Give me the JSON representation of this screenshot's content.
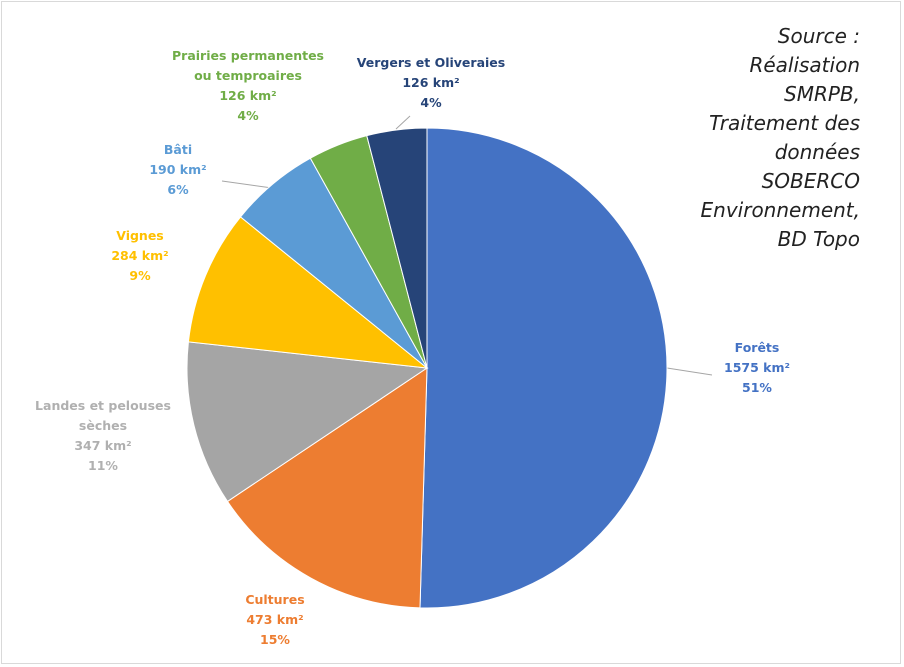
{
  "chart_data": {
    "type": "pie",
    "categories": [
      "Forêts",
      "Cultures",
      "Landes et pelouses sèches",
      "Vignes",
      "Bâti",
      "Prairies permanentes ou temproaires",
      "Vergers et Oliveraies"
    ],
    "values": [
      1575,
      473,
      347,
      284,
      190,
      126,
      126
    ],
    "value_labels": [
      "1575 km²",
      "473 km²",
      "347 km²",
      "284 km²",
      "190 km²",
      "126 km²",
      "126 km²"
    ],
    "percent_labels": [
      "51%",
      "15%",
      "11%",
      "9%",
      "6%",
      "4%",
      "4%"
    ],
    "colors": [
      "#4472c4",
      "#ed7d31",
      "#a5a5a5",
      "#ffc000",
      "#5b9bd5",
      "#70ad47",
      "#264478"
    ],
    "source": "Source : Réalisation SMRPB, Traitement des données SOBERCO Environnement, BD Topo"
  }
}
